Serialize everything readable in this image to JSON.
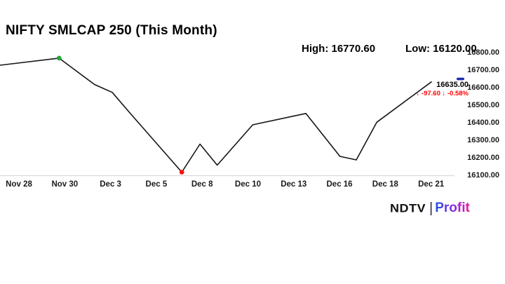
{
  "title": "NIFTY SMLCAP 250 (This Month)",
  "header_stats": {
    "high": "High: 16770.60",
    "low": "Low: 16120.00"
  },
  "last_quote": {
    "price": "16635.00",
    "change_line": "↓ -97.60 ↓ -0.58%"
  },
  "branding": {
    "ndtv": "NDTV",
    "divider": "|",
    "profit": "Profit"
  },
  "colors": {
    "line": "#151515",
    "axis_line": "#d9d9d9",
    "high_marker": "#1fa838",
    "low_marker": "#ff1111",
    "last_marker": "#1b2fae",
    "change_text": "#ff0000"
  },
  "chart_data": {
    "type": "line",
    "title": "NIFTY SMLCAP 250 (This Month)",
    "series_name": "NIFTY SMLCAP 250",
    "high": 16770.6,
    "low": 16120.0,
    "last": 16635.0,
    "change": -97.6,
    "change_pct": -0.58,
    "ylim": [
      16100,
      16800
    ],
    "y_ticks": [
      "16800.00",
      "16700.00",
      "16600.00",
      "16500.00",
      "16400.00",
      "16300.00",
      "16200.00",
      "16100.00"
    ],
    "x_tick_labels": [
      "Nov 28",
      "Nov 30",
      "Dec 3",
      "Dec 5",
      "Dec 8",
      "Dec 10",
      "Dec 13",
      "Dec 16",
      "Dec 18",
      "Dec 21"
    ],
    "grid": false,
    "legend": "none",
    "points": [
      {
        "date": "Nov 27",
        "value": 16730.0,
        "x": 0.0
      },
      {
        "date": "Nov 30",
        "value": 16770.6,
        "x": 0.13,
        "marker": "high"
      },
      {
        "date": "Dec 2",
        "value": 16620.0,
        "x": 0.208
      },
      {
        "date": "Dec 3",
        "value": 16575.0,
        "x": 0.247
      },
      {
        "date": "Dec 4",
        "value": 16460.0,
        "x": 0.285
      },
      {
        "date": "Dec 6",
        "value": 16120.0,
        "x": 0.4,
        "marker": "low"
      },
      {
        "date": "Dec 7",
        "value": 16280.0,
        "x": 0.44
      },
      {
        "date": "Dec 8",
        "value": 16160.0,
        "x": 0.478
      },
      {
        "date": "Dec 10",
        "value": 16390.0,
        "x": 0.556
      },
      {
        "date": "Dec 13",
        "value": 16455.0,
        "x": 0.673
      },
      {
        "date": "Dec 16",
        "value": 16210.0,
        "x": 0.748
      },
      {
        "date": "Dec 17",
        "value": 16190.0,
        "x": 0.784
      },
      {
        "date": "Dec 18",
        "value": 16405.0,
        "x": 0.829
      },
      {
        "date": "Dec 21",
        "value": 16635.0,
        "x": 0.949,
        "marker": "last"
      }
    ]
  }
}
